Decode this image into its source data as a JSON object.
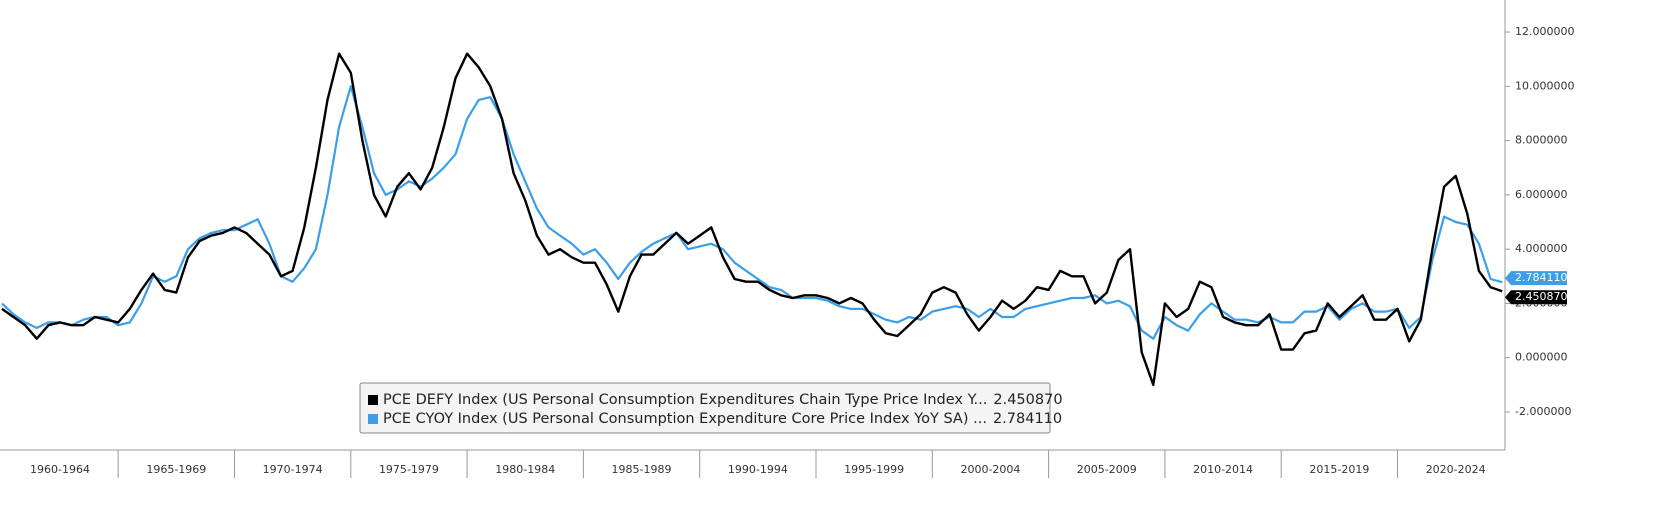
{
  "chart_data": {
    "type": "line",
    "x": [
      1960,
      1960.5,
      1961,
      1961.5,
      1962,
      1962.5,
      1963,
      1963.5,
      1964,
      1964.5,
      1965,
      1965.5,
      1966,
      1966.5,
      1967,
      1967.5,
      1968,
      1968.5,
      1969,
      1969.5,
      1970,
      1970.5,
      1971,
      1971.5,
      1972,
      1972.5,
      1973,
      1973.5,
      1974,
      1974.5,
      1975,
      1975.5,
      1976,
      1976.5,
      1977,
      1977.5,
      1978,
      1978.5,
      1979,
      1979.5,
      1980,
      1980.5,
      1981,
      1981.5,
      1982,
      1982.5,
      1983,
      1983.5,
      1984,
      1984.5,
      1985,
      1985.5,
      1986,
      1986.5,
      1987,
      1987.5,
      1988,
      1988.5,
      1989,
      1989.5,
      1990,
      1990.5,
      1991,
      1991.5,
      1992,
      1992.5,
      1993,
      1993.5,
      1994,
      1994.5,
      1995,
      1995.5,
      1996,
      1996.5,
      1997,
      1997.5,
      1998,
      1998.5,
      1999,
      1999.5,
      2000,
      2000.5,
      2001,
      2001.5,
      2002,
      2002.5,
      2003,
      2003.5,
      2004,
      2004.5,
      2005,
      2005.5,
      2006,
      2006.5,
      2007,
      2007.5,
      2008,
      2008.5,
      2009,
      2009.5,
      2010,
      2010.5,
      2011,
      2011.5,
      2012,
      2012.5,
      2013,
      2013.5,
      2014,
      2014.5,
      2015,
      2015.5,
      2016,
      2016.5,
      2017,
      2017.5,
      2018,
      2018.5,
      2019,
      2019.5,
      2020,
      2020.5,
      2021,
      2021.5,
      2022,
      2022.5,
      2023,
      2023.5,
      2024,
      2024.5
    ],
    "series": [
      {
        "name": "PCE DEFY Index (US Personal Consumption Expenditures Chain Type Price Index Y...",
        "color": "#000000",
        "values": [
          1.8,
          1.5,
          1.2,
          0.7,
          1.2,
          1.3,
          1.2,
          1.2,
          1.5,
          1.4,
          1.3,
          1.8,
          2.5,
          3.1,
          2.5,
          2.4,
          3.7,
          4.3,
          4.5,
          4.6,
          4.8,
          4.6,
          4.2,
          3.8,
          3.0,
          3.2,
          4.8,
          7.0,
          9.5,
          11.2,
          10.5,
          8.0,
          6.0,
          5.2,
          6.3,
          6.8,
          6.2,
          7.0,
          8.5,
          10.3,
          11.2,
          10.7,
          10.0,
          8.8,
          6.8,
          5.8,
          4.5,
          3.8,
          4.0,
          3.7,
          3.5,
          3.5,
          2.7,
          1.7,
          3.0,
          3.8,
          3.8,
          4.2,
          4.6,
          4.2,
          4.5,
          4.8,
          3.7,
          2.9,
          2.8,
          2.8,
          2.5,
          2.3,
          2.2,
          2.3,
          2.3,
          2.2,
          2.0,
          2.2,
          2.0,
          1.4,
          0.9,
          0.8,
          1.2,
          1.6,
          2.4,
          2.6,
          2.4,
          1.6,
          1.0,
          1.5,
          2.1,
          1.8,
          2.1,
          2.6,
          2.5,
          3.2,
          3.0,
          3.0,
          2.0,
          2.4,
          3.6,
          4.0,
          0.2,
          -1.0,
          2.0,
          1.5,
          1.8,
          2.8,
          2.6,
          1.5,
          1.3,
          1.2,
          1.2,
          1.6,
          0.3,
          0.3,
          0.9,
          1.0,
          2.0,
          1.5,
          1.9,
          2.3,
          1.4,
          1.4,
          1.8,
          0.6,
          1.4,
          4.0,
          6.3,
          6.7,
          5.3,
          3.2,
          2.6,
          2.45087
        ],
        "last": {
          "value": 2.45087,
          "label": "2.450870"
        }
      },
      {
        "name": "PCE CYOY Index (US Personal Consumption Expenditure Core Price Index YoY SA) ...",
        "color": "#3a9ee8",
        "values": [
          2.0,
          1.6,
          1.3,
          1.1,
          1.3,
          1.3,
          1.2,
          1.4,
          1.5,
          1.5,
          1.2,
          1.3,
          2.0,
          3.0,
          2.8,
          3.0,
          4.0,
          4.4,
          4.6,
          4.7,
          4.7,
          4.9,
          5.1,
          4.2,
          3.0,
          2.8,
          3.3,
          4.0,
          6.0,
          8.5,
          10.0,
          8.5,
          6.8,
          6.0,
          6.2,
          6.5,
          6.3,
          6.6,
          7.0,
          7.5,
          8.8,
          9.5,
          9.6,
          8.8,
          7.5,
          6.5,
          5.5,
          4.8,
          4.5,
          4.2,
          3.8,
          4.0,
          3.5,
          2.9,
          3.5,
          3.9,
          4.2,
          4.4,
          4.6,
          4.0,
          4.1,
          4.2,
          4.0,
          3.5,
          3.2,
          2.9,
          2.6,
          2.5,
          2.2,
          2.2,
          2.2,
          2.1,
          1.9,
          1.8,
          1.8,
          1.6,
          1.4,
          1.3,
          1.5,
          1.4,
          1.7,
          1.8,
          1.9,
          1.8,
          1.5,
          1.8,
          1.5,
          1.5,
          1.8,
          1.9,
          2.0,
          2.1,
          2.2,
          2.2,
          2.3,
          2.0,
          2.1,
          1.9,
          1.0,
          0.7,
          1.5,
          1.2,
          1.0,
          1.6,
          2.0,
          1.7,
          1.4,
          1.4,
          1.3,
          1.5,
          1.3,
          1.3,
          1.7,
          1.7,
          1.9,
          1.4,
          1.8,
          2.0,
          1.7,
          1.7,
          1.8,
          1.1,
          1.5,
          3.6,
          5.2,
          5.0,
          4.9,
          4.2,
          2.9,
          2.78411
        ],
        "last": {
          "value": 2.78411,
          "label": "2.784110"
        }
      }
    ],
    "xlim": [
      1959.92,
      2024.62
    ],
    "xticks": [
      {
        "value": 1960,
        "label": "1960-1964"
      },
      {
        "value": 1965,
        "label": "1965-1969"
      },
      {
        "value": 1970,
        "label": "1970-1974"
      },
      {
        "value": 1975,
        "label": "1975-1979"
      },
      {
        "value": 1980,
        "label": "1980-1984"
      },
      {
        "value": 1985,
        "label": "1985-1989"
      },
      {
        "value": 1990,
        "label": "1990-1994"
      },
      {
        "value": 1995,
        "label": "1995-1999"
      },
      {
        "value": 2000,
        "label": "2000-2004"
      },
      {
        "value": 2005,
        "label": "2005-2009"
      },
      {
        "value": 2010,
        "label": "2010-2014"
      },
      {
        "value": 2015,
        "label": "2015-2019"
      },
      {
        "value": 2020,
        "label": "2020-2024"
      }
    ],
    "ylim": [
      -3.4,
      13.18
    ],
    "yticks": [
      {
        "value": -2,
        "label": "-2.000000"
      },
      {
        "value": 0,
        "label": "0.000000"
      },
      {
        "value": 2,
        "label": "2.000000"
      },
      {
        "value": 4,
        "label": "4.000000"
      },
      {
        "value": 6,
        "label": "6.000000"
      },
      {
        "value": 8,
        "label": "8.000000"
      },
      {
        "value": 10,
        "label": "10.000000"
      },
      {
        "value": 12,
        "label": "12.000000"
      }
    ]
  }
}
